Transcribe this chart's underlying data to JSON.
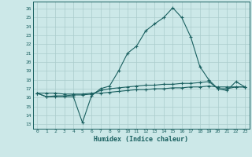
{
  "title": "",
  "xlabel": "Humidex (Indice chaleur)",
  "ylabel": "",
  "bg_color": "#cce8e8",
  "grid_color": "#aacccc",
  "line_color": "#1a6060",
  "x_ticks": [
    0,
    1,
    2,
    3,
    4,
    5,
    6,
    7,
    8,
    9,
    10,
    11,
    12,
    13,
    14,
    15,
    16,
    17,
    18,
    19,
    20,
    21,
    22,
    23
  ],
  "y_ticks": [
    13,
    14,
    15,
    16,
    17,
    18,
    19,
    20,
    21,
    22,
    23,
    24,
    25,
    26
  ],
  "ylim": [
    12.5,
    26.8
  ],
  "xlim": [
    -0.5,
    23.5
  ],
  "series1": [
    16.5,
    16.1,
    16.1,
    16.1,
    16.1,
    13.2,
    16.2,
    17.0,
    17.3,
    19.0,
    21.0,
    21.8,
    23.5,
    24.3,
    25.0,
    26.1,
    25.0,
    22.8,
    19.5,
    18.0,
    17.0,
    16.8,
    17.8,
    17.2
  ],
  "series2": [
    16.5,
    16.1,
    16.2,
    16.2,
    16.3,
    16.3,
    16.4,
    16.8,
    17.0,
    17.1,
    17.2,
    17.3,
    17.4,
    17.4,
    17.5,
    17.5,
    17.6,
    17.6,
    17.7,
    17.8,
    17.0,
    17.0,
    17.2,
    17.2
  ],
  "series3": [
    16.5,
    16.5,
    16.5,
    16.4,
    16.4,
    16.4,
    16.5,
    16.5,
    16.6,
    16.7,
    16.8,
    16.9,
    16.9,
    17.0,
    17.0,
    17.1,
    17.1,
    17.2,
    17.2,
    17.3,
    17.2,
    17.2,
    17.2,
    17.2
  ]
}
